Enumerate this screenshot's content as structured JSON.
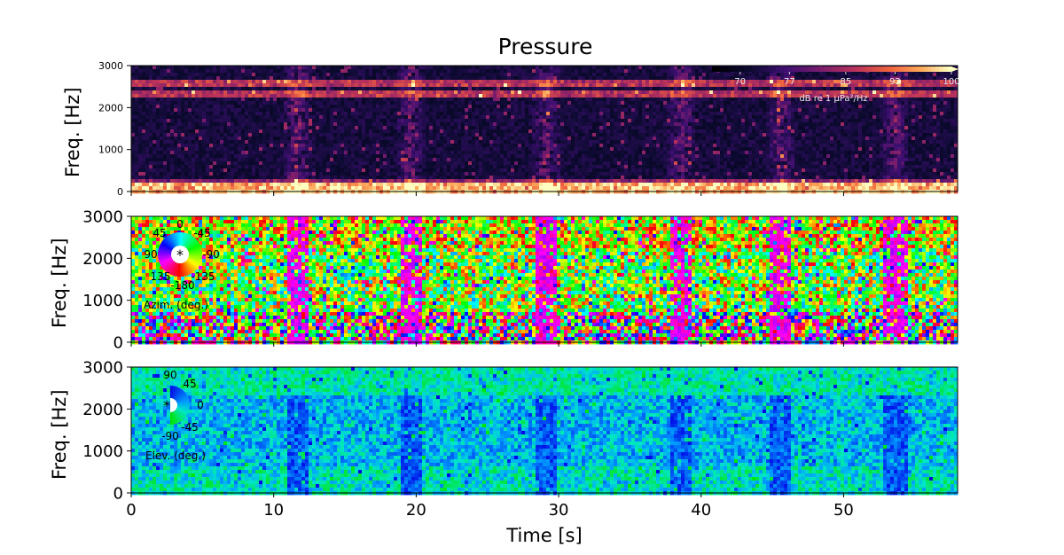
{
  "chart_data": [
    {
      "type": "heatmap",
      "panel": "pressure",
      "title": "Pressure",
      "xlabel": "",
      "ylabel": "Freq. [Hz]",
      "xlim": [
        0,
        58
      ],
      "ylim": [
        0,
        3000
      ],
      "yticks": [
        0,
        1000,
        2000,
        3000
      ],
      "xticks": [
        0,
        10,
        20,
        30,
        40,
        50
      ],
      "colorbar": {
        "label": "dB re 1 µPa²/Hz",
        "range": [
          66,
          100
        ],
        "ticks": [
          70,
          77,
          85,
          92,
          100
        ],
        "colormap": "magma",
        "placement": "top-right"
      },
      "tonal_bands_hz": [
        2600,
        2350,
        200,
        60
      ],
      "broadband_events_s": [
        11.5,
        19.5,
        29,
        38.5,
        45.5,
        53.5
      ]
    },
    {
      "type": "heatmap",
      "panel": "azimuth",
      "xlabel": "",
      "ylabel": "Freq. [Hz]",
      "xlim": [
        0,
        58
      ],
      "ylim": [
        0,
        3000
      ],
      "yticks": [
        0,
        1000,
        2000,
        3000
      ],
      "xticks": [
        0,
        10,
        20,
        30,
        40,
        50
      ],
      "legend_wheel": {
        "label": "Azim. (deg.)",
        "ticks": [
          "0",
          "45",
          "-45",
          "90",
          "-90",
          "135",
          "-135",
          "-180"
        ],
        "placement": "top-left"
      },
      "broadband_events_s": [
        11.5,
        19.5,
        29,
        38.5,
        45.5,
        53.5
      ]
    },
    {
      "type": "heatmap",
      "panel": "elevation",
      "xlabel": "Time [s]",
      "ylabel": "Freq. [Hz]",
      "xlim": [
        0,
        58
      ],
      "ylim": [
        0,
        3000
      ],
      "yticks": [
        0,
        1000,
        2000,
        3000
      ],
      "xticks": [
        0,
        10,
        20,
        30,
        40,
        50
      ],
      "legend_wheel": {
        "label": "Elev. (deg.)",
        "ticks": [
          "90",
          "45",
          "0",
          "-45",
          "-90"
        ],
        "placement": "top-left"
      },
      "broadband_events_s": [
        11.5,
        19.5,
        29,
        38.5,
        45.5,
        53.5
      ]
    }
  ]
}
